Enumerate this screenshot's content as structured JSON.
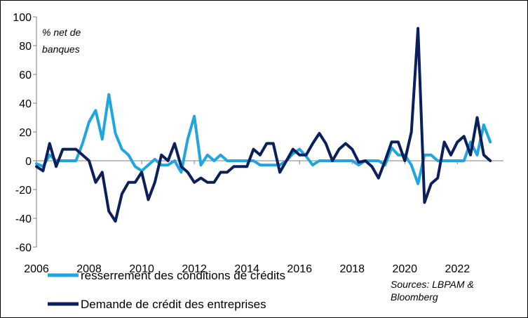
{
  "chart_data": {
    "type": "line",
    "title": "",
    "xlabel": "",
    "ylabel": "",
    "ylabel_note": [
      "% net de",
      "banques"
    ],
    "xlim": [
      2006,
      2023.75
    ],
    "ylim": [
      -60,
      100
    ],
    "y_ticks": [
      -60,
      -40,
      -20,
      0,
      20,
      40,
      60,
      80,
      100
    ],
    "x_ticks": [
      2006,
      2008,
      2010,
      2012,
      2014,
      2016,
      2018,
      2020,
      2022
    ],
    "grid": false,
    "legend_position": "bottom-left",
    "series": [
      {
        "name": "resserrement des conditions de crédits",
        "color": "#1fa6e0",
        "x": [
          2006.0,
          2006.25,
          2006.5,
          2006.75,
          2007.0,
          2007.25,
          2007.5,
          2007.75,
          2008.0,
          2008.25,
          2008.5,
          2008.75,
          2009.0,
          2009.25,
          2009.5,
          2009.75,
          2010.0,
          2010.25,
          2010.5,
          2010.75,
          2011.0,
          2011.25,
          2011.5,
          2011.75,
          2012.0,
          2012.25,
          2012.5,
          2012.75,
          2013.0,
          2013.25,
          2013.5,
          2013.75,
          2014.0,
          2014.25,
          2014.5,
          2014.75,
          2015.0,
          2015.25,
          2015.5,
          2015.75,
          2016.0,
          2016.25,
          2016.5,
          2016.75,
          2017.0,
          2017.25,
          2017.5,
          2017.75,
          2018.0,
          2018.25,
          2018.5,
          2018.75,
          2019.0,
          2019.25,
          2019.5,
          2019.75,
          2020.0,
          2020.25,
          2020.5,
          2020.75,
          2021.0,
          2021.25,
          2021.5,
          2021.75,
          2022.0,
          2022.25,
          2022.5,
          2022.75,
          2023.0,
          2023.25
        ],
        "y": [
          -2,
          -4,
          4,
          0,
          0,
          0,
          0,
          12,
          27,
          35,
          15,
          46,
          19,
          8,
          4,
          -4,
          -7,
          -3,
          1,
          -3,
          -3,
          0,
          -8,
          15,
          31,
          -3,
          4,
          0,
          4,
          0,
          0,
          0,
          0,
          0,
          -3,
          -3,
          -3,
          -3,
          0,
          5,
          8,
          3,
          -3,
          0,
          0,
          0,
          0,
          0,
          0,
          -3,
          0,
          0,
          0,
          -3,
          9,
          4,
          4,
          -3,
          -16,
          4,
          4,
          0,
          0,
          0,
          0,
          0,
          13,
          4,
          25,
          13
        ]
      },
      {
        "name": "Demande de crédit des entreprises",
        "color": "#0a1f5c",
        "x": [
          2006.0,
          2006.25,
          2006.5,
          2006.75,
          2007.0,
          2007.25,
          2007.5,
          2007.75,
          2008.0,
          2008.25,
          2008.5,
          2008.75,
          2009.0,
          2009.25,
          2009.5,
          2009.75,
          2010.0,
          2010.25,
          2010.5,
          2010.75,
          2011.0,
          2011.25,
          2011.5,
          2011.75,
          2012.0,
          2012.25,
          2012.5,
          2012.75,
          2013.0,
          2013.25,
          2013.5,
          2013.75,
          2014.0,
          2014.25,
          2014.5,
          2014.75,
          2015.0,
          2015.25,
          2015.5,
          2015.75,
          2016.0,
          2016.25,
          2016.5,
          2016.75,
          2017.0,
          2017.25,
          2017.5,
          2017.75,
          2018.0,
          2018.25,
          2018.5,
          2018.75,
          2019.0,
          2019.25,
          2019.5,
          2019.75,
          2020.0,
          2020.25,
          2020.5,
          2020.75,
          2021.0,
          2021.25,
          2021.5,
          2021.75,
          2022.0,
          2022.25,
          2022.5,
          2022.75,
          2023.0,
          2023.25
        ],
        "y": [
          -4,
          -7,
          12,
          -4,
          8,
          8,
          8,
          4,
          0,
          -15,
          -8,
          -35,
          -42,
          -23,
          -15,
          -15,
          -8,
          -27,
          -15,
          4,
          0,
          12,
          -4,
          -8,
          -15,
          -12,
          -15,
          -15,
          -8,
          -8,
          -4,
          -4,
          -4,
          8,
          4,
          12,
          12,
          -8,
          0,
          8,
          4,
          4,
          12,
          19,
          12,
          0,
          8,
          12,
          8,
          -1,
          0,
          -4,
          -12,
          0,
          13,
          13,
          0,
          20,
          92,
          -29,
          -16,
          -12,
          13,
          4,
          13,
          17,
          4,
          30,
          4,
          0
        ]
      }
    ],
    "source_note": [
      "Sources: LBPAM &",
      "Bloomberg"
    ]
  }
}
